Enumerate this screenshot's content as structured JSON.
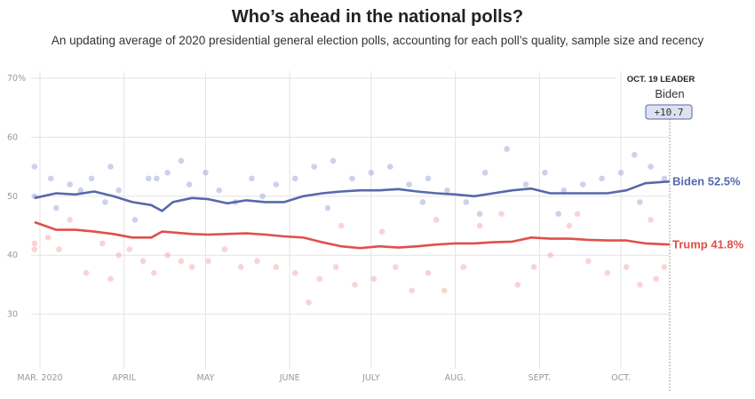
{
  "chart_data": {
    "type": "scatter",
    "title": "Who’s ahead in the national polls?",
    "subtitle": "An updating average of 2020 presidential general election polls, accounting for each poll’s quality, sample size and recency",
    "ylim": [
      21,
      70
    ],
    "y_ticks": [
      {
        "v": 70,
        "label": "70%"
      },
      {
        "v": 60,
        "label": "60"
      },
      {
        "v": 50,
        "label": "50"
      },
      {
        "v": 40,
        "label": "40"
      },
      {
        "v": 30,
        "label": "30"
      }
    ],
    "xlim": [
      "2020-02-25",
      "2020-10-19"
    ],
    "x_ticks": [
      {
        "d": "2020-03-01",
        "label": "MAR. 2020"
      },
      {
        "d": "2020-04-01",
        "label": "APRIL"
      },
      {
        "d": "2020-05-01",
        "label": "MAY"
      },
      {
        "d": "2020-06-01",
        "label": "JUNE"
      },
      {
        "d": "2020-07-01",
        "label": "JULY"
      },
      {
        "d": "2020-08-01",
        "label": "AUG."
      },
      {
        "d": "2020-09-01",
        "label": "SEPT."
      },
      {
        "d": "2020-10-01",
        "label": "OCT."
      }
    ],
    "grid": true,
    "leader": {
      "heading": "OCT. 19 LEADER",
      "name": "Biden",
      "margin": "+10.7",
      "date": "2020-10-19"
    },
    "series": [
      {
        "name": "Biden",
        "end_label": "Biden 52.5%",
        "color": "#5768ac",
        "dot_color": "#8f9bd0",
        "trend": [
          [
            "2020-02-28",
            49.7
          ],
          [
            "2020-03-07",
            50.5
          ],
          [
            "2020-03-14",
            50.3
          ],
          [
            "2020-03-21",
            50.8
          ],
          [
            "2020-03-28",
            50.0
          ],
          [
            "2020-04-04",
            49.0
          ],
          [
            "2020-04-11",
            48.5
          ],
          [
            "2020-04-15",
            47.5
          ],
          [
            "2020-04-19",
            49.0
          ],
          [
            "2020-04-26",
            49.7
          ],
          [
            "2020-05-02",
            49.5
          ],
          [
            "2020-05-09",
            48.8
          ],
          [
            "2020-05-16",
            49.3
          ],
          [
            "2020-05-23",
            49.0
          ],
          [
            "2020-05-30",
            49.0
          ],
          [
            "2020-06-06",
            50.0
          ],
          [
            "2020-06-13",
            50.5
          ],
          [
            "2020-06-20",
            50.8
          ],
          [
            "2020-06-27",
            51.0
          ],
          [
            "2020-07-04",
            51.0
          ],
          [
            "2020-07-11",
            51.2
          ],
          [
            "2020-07-18",
            50.8
          ],
          [
            "2020-07-25",
            50.5
          ],
          [
            "2020-08-01",
            50.3
          ],
          [
            "2020-08-08",
            50.0
          ],
          [
            "2020-08-15",
            50.5
          ],
          [
            "2020-08-22",
            51.0
          ],
          [
            "2020-08-29",
            51.3
          ],
          [
            "2020-09-05",
            50.5
          ],
          [
            "2020-09-12",
            50.5
          ],
          [
            "2020-09-19",
            50.5
          ],
          [
            "2020-09-26",
            50.5
          ],
          [
            "2020-10-03",
            51.0
          ],
          [
            "2020-10-10",
            52.2
          ],
          [
            "2020-10-19",
            52.5
          ]
        ],
        "polls": [
          [
            "2020-02-28",
            55
          ],
          [
            "2020-02-28",
            50
          ],
          [
            "2020-03-05",
            53
          ],
          [
            "2020-03-07",
            48
          ],
          [
            "2020-03-12",
            52
          ],
          [
            "2020-03-16",
            51
          ],
          [
            "2020-03-20",
            53
          ],
          [
            "2020-03-25",
            49
          ],
          [
            "2020-03-27",
            55
          ],
          [
            "2020-03-30",
            51
          ],
          [
            "2020-04-05",
            46
          ],
          [
            "2020-04-10",
            53
          ],
          [
            "2020-04-13",
            53
          ],
          [
            "2020-04-17",
            54
          ],
          [
            "2020-04-22",
            56
          ],
          [
            "2020-04-25",
            52
          ],
          [
            "2020-05-01",
            54
          ],
          [
            "2020-05-06",
            51
          ],
          [
            "2020-05-12",
            49
          ],
          [
            "2020-05-18",
            53
          ],
          [
            "2020-05-22",
            50
          ],
          [
            "2020-05-27",
            52
          ],
          [
            "2020-06-03",
            53
          ],
          [
            "2020-06-10",
            55
          ],
          [
            "2020-06-17",
            56
          ],
          [
            "2020-06-24",
            53
          ],
          [
            "2020-07-01",
            54
          ],
          [
            "2020-07-08",
            55
          ],
          [
            "2020-07-15",
            52
          ],
          [
            "2020-07-22",
            53
          ],
          [
            "2020-07-29",
            51
          ],
          [
            "2020-08-05",
            49
          ],
          [
            "2020-08-12",
            54
          ],
          [
            "2020-08-20",
            58
          ],
          [
            "2020-08-27",
            52
          ],
          [
            "2020-09-03",
            54
          ],
          [
            "2020-09-10",
            51
          ],
          [
            "2020-09-17",
            52
          ],
          [
            "2020-09-24",
            53
          ],
          [
            "2020-10-01",
            54
          ],
          [
            "2020-10-06",
            57
          ],
          [
            "2020-10-12",
            55
          ],
          [
            "2020-10-17",
            53
          ],
          [
            "2020-06-15",
            48
          ],
          [
            "2020-07-20",
            49
          ],
          [
            "2020-08-10",
            47
          ],
          [
            "2020-09-08",
            47
          ],
          [
            "2020-10-08",
            49
          ]
        ]
      },
      {
        "name": "Trump",
        "end_label": "Trump 41.8%",
        "color": "#e0504a",
        "dot_color": "#f2a09c",
        "trend": [
          [
            "2020-02-28",
            45.6
          ],
          [
            "2020-03-07",
            44.3
          ],
          [
            "2020-03-14",
            44.3
          ],
          [
            "2020-03-21",
            44.0
          ],
          [
            "2020-03-28",
            43.6
          ],
          [
            "2020-04-04",
            43.0
          ],
          [
            "2020-04-11",
            43.0
          ],
          [
            "2020-04-15",
            44.0
          ],
          [
            "2020-04-26",
            43.6
          ],
          [
            "2020-05-02",
            43.5
          ],
          [
            "2020-05-16",
            43.7
          ],
          [
            "2020-05-23",
            43.5
          ],
          [
            "2020-05-30",
            43.2
          ],
          [
            "2020-06-06",
            43.0
          ],
          [
            "2020-06-13",
            42.2
          ],
          [
            "2020-06-20",
            41.5
          ],
          [
            "2020-06-27",
            41.2
          ],
          [
            "2020-07-04",
            41.5
          ],
          [
            "2020-07-11",
            41.3
          ],
          [
            "2020-07-18",
            41.5
          ],
          [
            "2020-07-25",
            41.8
          ],
          [
            "2020-08-01",
            42.0
          ],
          [
            "2020-08-08",
            42.0
          ],
          [
            "2020-08-15",
            42.2
          ],
          [
            "2020-08-22",
            42.3
          ],
          [
            "2020-08-29",
            43.0
          ],
          [
            "2020-09-05",
            42.8
          ],
          [
            "2020-09-12",
            42.8
          ],
          [
            "2020-09-19",
            42.6
          ],
          [
            "2020-09-26",
            42.5
          ],
          [
            "2020-10-03",
            42.5
          ],
          [
            "2020-10-10",
            42.0
          ],
          [
            "2020-10-19",
            41.8
          ]
        ],
        "polls": [
          [
            "2020-02-28",
            42
          ],
          [
            "2020-02-28",
            41
          ],
          [
            "2020-03-04",
            43
          ],
          [
            "2020-03-08",
            41
          ],
          [
            "2020-03-12",
            46
          ],
          [
            "2020-03-18",
            37
          ],
          [
            "2020-03-24",
            42
          ],
          [
            "2020-03-27",
            36
          ],
          [
            "2020-03-30",
            40
          ],
          [
            "2020-04-03",
            41
          ],
          [
            "2020-04-08",
            39
          ],
          [
            "2020-04-12",
            37
          ],
          [
            "2020-04-17",
            40
          ],
          [
            "2020-04-22",
            39
          ],
          [
            "2020-04-26",
            38
          ],
          [
            "2020-05-02",
            39
          ],
          [
            "2020-05-08",
            41
          ],
          [
            "2020-05-14",
            38
          ],
          [
            "2020-05-20",
            39
          ],
          [
            "2020-05-27",
            38
          ],
          [
            "2020-06-03",
            37
          ],
          [
            "2020-06-08",
            32
          ],
          [
            "2020-06-12",
            36
          ],
          [
            "2020-06-18",
            38
          ],
          [
            "2020-06-25",
            35
          ],
          [
            "2020-07-02",
            36
          ],
          [
            "2020-07-10",
            38
          ],
          [
            "2020-07-16",
            34
          ],
          [
            "2020-07-22",
            37
          ],
          [
            "2020-07-28",
            34
          ],
          [
            "2020-08-04",
            38
          ],
          [
            "2020-08-10",
            45
          ],
          [
            "2020-08-18",
            47
          ],
          [
            "2020-08-24",
            35
          ],
          [
            "2020-08-30",
            38
          ],
          [
            "2020-09-05",
            40
          ],
          [
            "2020-09-12",
            45
          ],
          [
            "2020-09-19",
            39
          ],
          [
            "2020-09-26",
            37
          ],
          [
            "2020-10-03",
            38
          ],
          [
            "2020-10-08",
            35
          ],
          [
            "2020-10-14",
            36
          ],
          [
            "2020-10-17",
            38
          ],
          [
            "2020-06-20",
            45
          ],
          [
            "2020-07-05",
            44
          ],
          [
            "2020-07-25",
            46
          ],
          [
            "2020-09-15",
            47
          ],
          [
            "2020-10-12",
            46
          ]
        ]
      }
    ]
  }
}
